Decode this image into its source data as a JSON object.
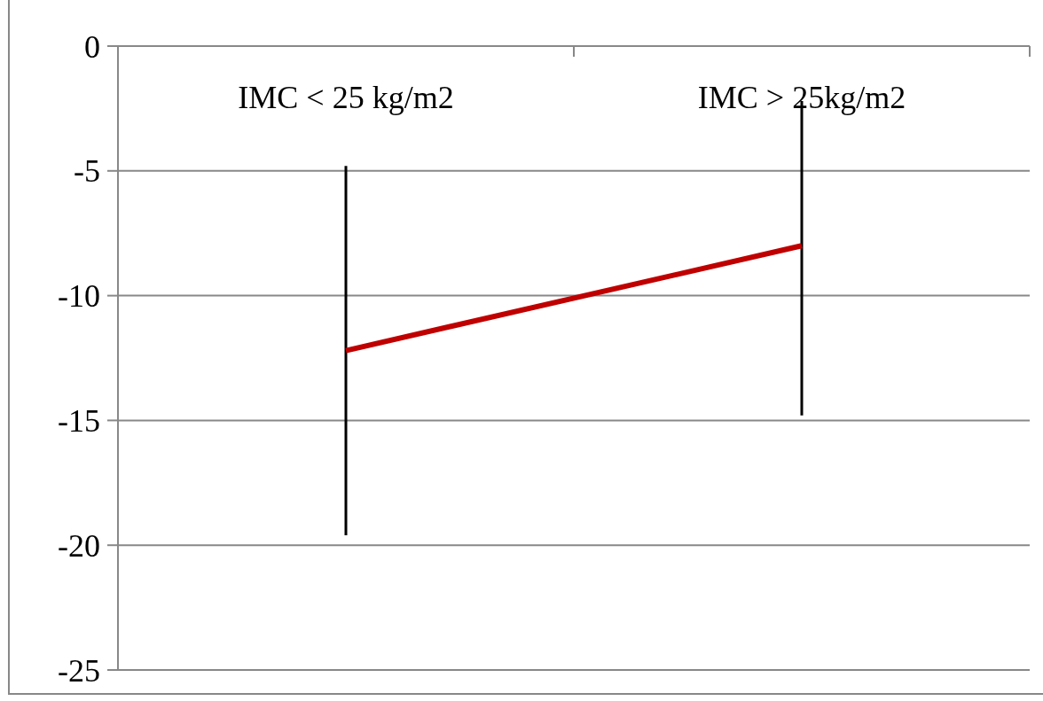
{
  "chart_data": {
    "type": "line",
    "categories": [
      "IMC < 25 kg/m2",
      "IMC > 25kg/m2"
    ],
    "series": [
      {
        "color": "#c00000",
        "values": [
          -12.2,
          -8.0
        ],
        "errors": [
          [
            -19.6,
            -4.8
          ],
          [
            -14.8,
            -2.2
          ]
        ]
      }
    ],
    "ylim": [
      -25,
      0
    ],
    "yticks": [
      0,
      -5,
      -10,
      -15,
      -20,
      -25
    ],
    "grid": "y"
  }
}
